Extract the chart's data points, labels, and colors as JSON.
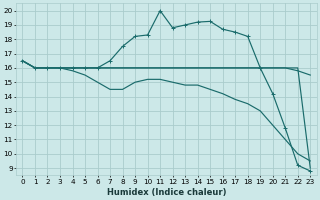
{
  "xlabel": "Humidex (Indice chaleur)",
  "xlim": [
    -0.5,
    23.5
  ],
  "ylim": [
    8.5,
    20.5
  ],
  "xtick_labels": [
    "0",
    "1",
    "2",
    "3",
    "4",
    "5",
    "6",
    "7",
    "8",
    "9",
    "10",
    "11",
    "12",
    "13",
    "14",
    "15",
    "16",
    "17",
    "18",
    "19",
    "20",
    "21",
    "22",
    "23"
  ],
  "ytick_vals": [
    9,
    10,
    11,
    12,
    13,
    14,
    15,
    16,
    17,
    18,
    19,
    20
  ],
  "bg_color": "#cce8e8",
  "grid_color": "#aacccc",
  "line_color": "#1a6b6b",
  "curve1_x": [
    0,
    1,
    2,
    3,
    4,
    5,
    6,
    7,
    8,
    9,
    10,
    11,
    12,
    13,
    14,
    15,
    16,
    17,
    18,
    19,
    20,
    21,
    22,
    23
  ],
  "curve1_y": [
    16.5,
    16.0,
    16.0,
    16.0,
    16.0,
    16.0,
    16.0,
    16.5,
    17.5,
    18.2,
    18.3,
    20.0,
    18.8,
    19.0,
    19.2,
    19.25,
    18.7,
    18.5,
    18.2,
    16.0,
    14.2,
    11.8,
    9.2,
    8.8
  ],
  "curve2_x": [
    0,
    1,
    2,
    3,
    4,
    5,
    6,
    7,
    8,
    9,
    10,
    11,
    12,
    13,
    14,
    15,
    16,
    17,
    18,
    19,
    20,
    21,
    22,
    23
  ],
  "curve2_y": [
    16.5,
    16.0,
    16.0,
    16.0,
    16.0,
    16.0,
    16.0,
    16.0,
    16.0,
    16.0,
    16.0,
    16.0,
    16.0,
    16.0,
    16.0,
    16.0,
    16.0,
    16.0,
    16.0,
    16.0,
    16.0,
    16.0,
    15.8,
    15.5
  ],
  "curve3_x": [
    0,
    1,
    2,
    3,
    4,
    5,
    6,
    7,
    8,
    9,
    10,
    11,
    12,
    13,
    14,
    15,
    16,
    17,
    18,
    19,
    20,
    21,
    22,
    23
  ],
  "curve3_y": [
    16.5,
    16.0,
    16.0,
    16.0,
    15.8,
    15.5,
    15.0,
    14.5,
    14.5,
    15.0,
    15.2,
    15.2,
    15.0,
    14.8,
    14.8,
    14.5,
    14.2,
    13.8,
    13.5,
    13.0,
    12.0,
    11.0,
    10.0,
    9.5
  ],
  "curve4_x": [
    0,
    1,
    2,
    3,
    4,
    5,
    6,
    7,
    8,
    9,
    10,
    11,
    12,
    13,
    14,
    15,
    16,
    17,
    18,
    19,
    20,
    21,
    22,
    23
  ],
  "curve4_y": [
    16.5,
    16.0,
    16.0,
    16.0,
    16.0,
    16.0,
    16.0,
    16.0,
    16.0,
    16.0,
    16.0,
    16.0,
    16.0,
    16.0,
    16.0,
    16.0,
    16.0,
    16.0,
    16.0,
    16.0,
    16.0,
    16.0,
    16.0,
    9.0
  ],
  "xlabel_fontsize": 6.0,
  "tick_fontsize": 5.2,
  "linewidth": 0.85,
  "markersize": 3.0
}
